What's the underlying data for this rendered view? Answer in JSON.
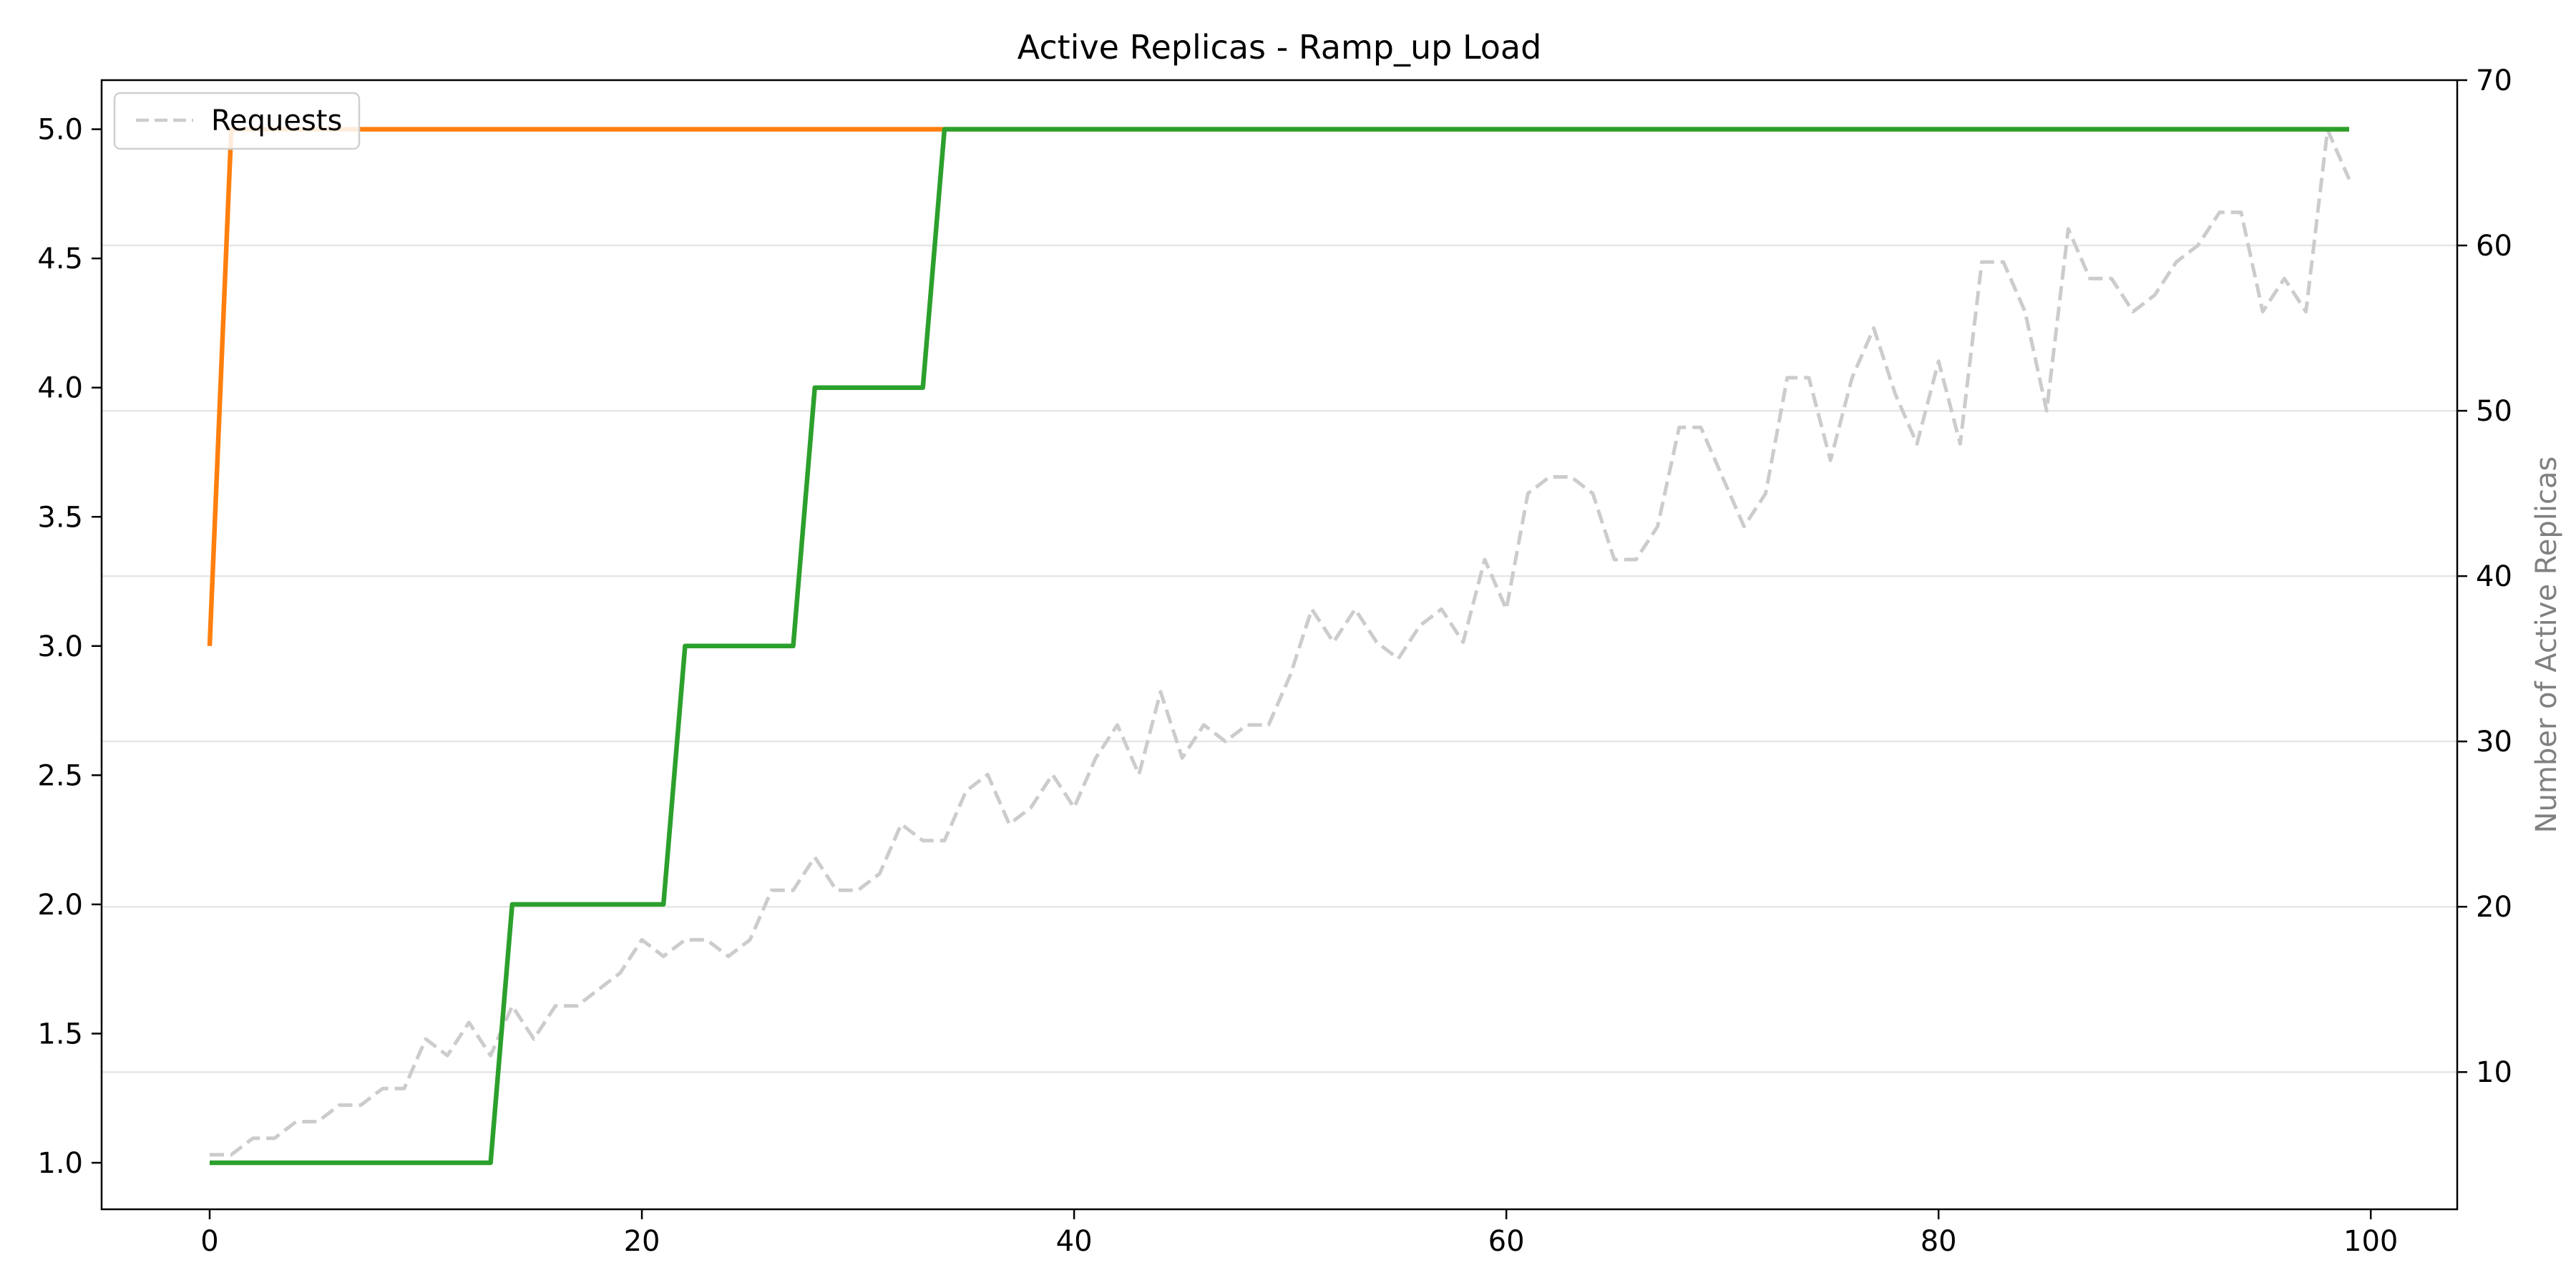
{
  "chart_data": {
    "type": "line",
    "title": "Active Replicas - Ramp_up Load",
    "xlabel": "",
    "ylabel_left": "",
    "ylabel_right": "Number of Active Replicas",
    "xlim": [
      -5,
      104
    ],
    "ylim_left": [
      0.82,
      5.19
    ],
    "ylim_right": [
      1.7,
      70
    ],
    "x_ticks": [
      0,
      20,
      40,
      60,
      80,
      100
    ],
    "y_left_ticks": [
      1.0,
      1.5,
      2.0,
      2.5,
      3.0,
      3.5,
      4.0,
      4.5,
      5.0
    ],
    "y_right_ticks": [
      10,
      20,
      30,
      40,
      50,
      60,
      70
    ],
    "legend": {
      "placement": "top-left",
      "entries": [
        "Requests"
      ]
    },
    "grid": "horizontal (right axis)",
    "series": [
      {
        "axis": "left",
        "color": "#ff7f0e",
        "style": "solid",
        "x": [
          0,
          1,
          99
        ],
        "y": [
          3,
          5,
          5
        ]
      },
      {
        "axis": "left",
        "color": "#2ca02c",
        "style": "solid",
        "x": [
          0,
          13,
          14,
          21,
          22,
          27,
          28,
          33,
          34,
          99
        ],
        "y": [
          1,
          1,
          2,
          2,
          3,
          3,
          4,
          4,
          5,
          5
        ]
      },
      {
        "name": "Requests",
        "axis": "right",
        "color": "#cccccc",
        "style": "dashed",
        "x": [
          0,
          1,
          2,
          3,
          4,
          5,
          6,
          7,
          8,
          9,
          10,
          11,
          12,
          13,
          14,
          15,
          16,
          17,
          18,
          19,
          20,
          21,
          22,
          23,
          24,
          25,
          26,
          27,
          28,
          29,
          30,
          31,
          32,
          33,
          34,
          35,
          36,
          37,
          38,
          39,
          40,
          41,
          42,
          43,
          44,
          45,
          46,
          47,
          48,
          49,
          50,
          51,
          52,
          53,
          54,
          55,
          56,
          57,
          58,
          59,
          60,
          61,
          62,
          63,
          64,
          65,
          66,
          67,
          68,
          69,
          70,
          71,
          72,
          73,
          74,
          75,
          76,
          77,
          78,
          79,
          80,
          81,
          82,
          83,
          84,
          85,
          86,
          87,
          88,
          89,
          90,
          91,
          92,
          93,
          94,
          95,
          96,
          97,
          98,
          99
        ],
        "y": [
          5,
          5,
          6,
          6,
          7,
          7,
          8,
          8,
          9,
          9,
          12,
          11,
          13,
          11,
          14,
          12,
          14,
          14,
          15,
          16,
          18,
          17,
          18,
          18,
          17,
          18,
          21,
          21,
          23,
          21,
          21,
          22,
          25,
          24,
          24,
          27,
          28,
          25,
          26,
          28,
          26,
          29,
          31,
          28,
          33,
          29,
          31,
          30,
          31,
          31,
          34,
          38,
          36,
          38,
          36,
          35,
          37,
          38,
          36,
          41,
          38,
          45,
          46,
          46,
          45,
          41,
          41,
          43,
          49,
          49,
          46,
          43,
          45,
          52,
          52,
          47,
          52,
          55,
          51,
          48,
          53,
          48,
          59,
          59,
          56,
          50,
          61,
          58,
          58,
          56,
          57,
          59,
          60,
          62,
          62,
          56,
          58,
          56,
          67,
          64
        ]
      }
    ]
  }
}
